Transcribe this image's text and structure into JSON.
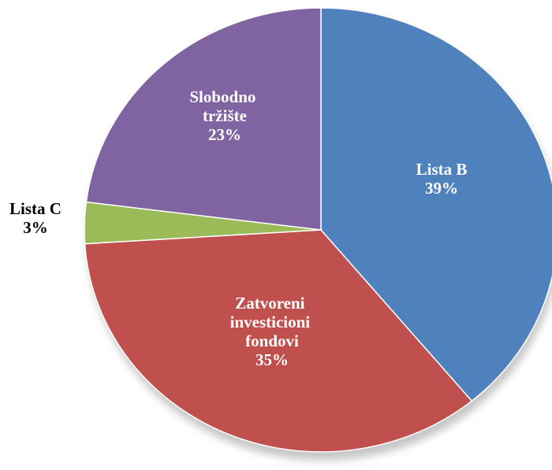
{
  "chart_data": {
    "type": "pie",
    "categories": [
      "Lista B",
      "Zatvoreni investicioni fondovi",
      "Lista C",
      "Slobodno tržište"
    ],
    "values": [
      39,
      35,
      3,
      23
    ],
    "value_labels": [
      "39%",
      "35%",
      "3%",
      "23%"
    ],
    "colors": [
      "#4f81bd",
      "#c0504d",
      "#9bbb59",
      "#8064a2"
    ]
  }
}
